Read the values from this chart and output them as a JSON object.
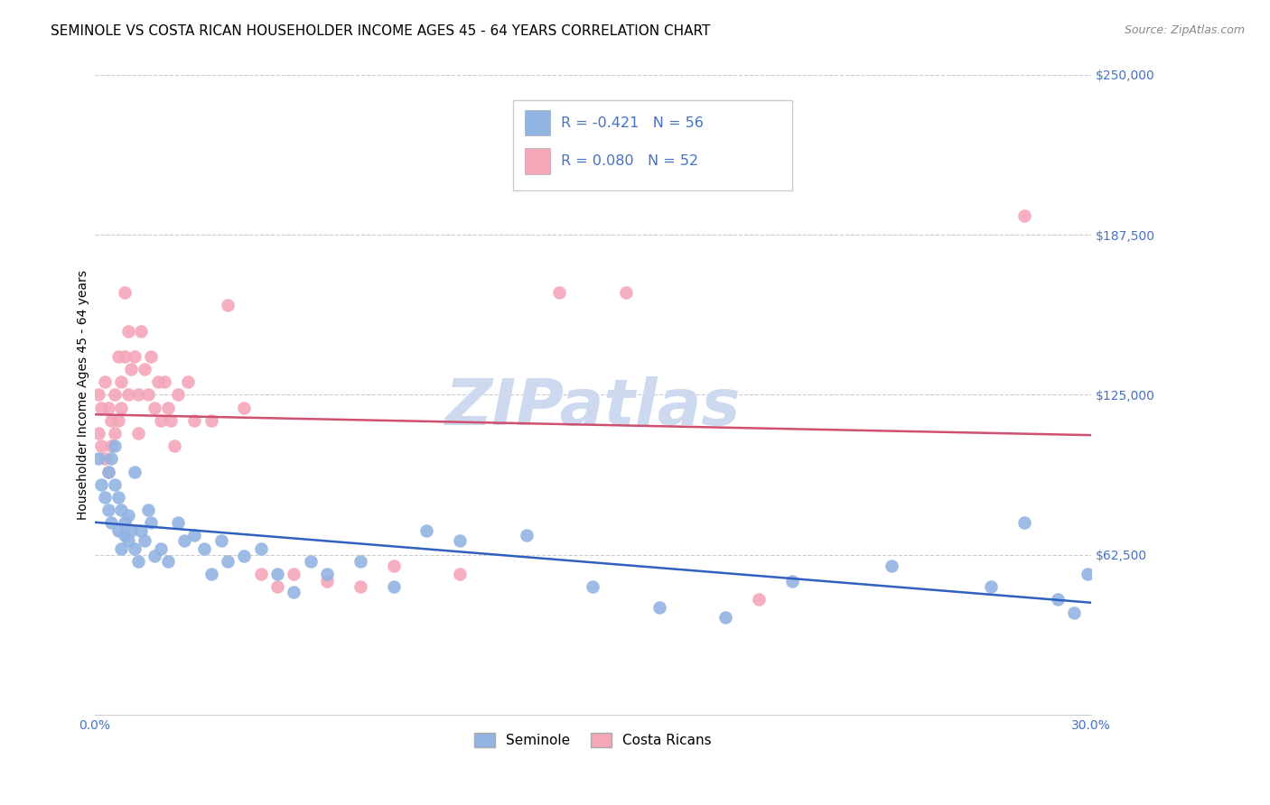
{
  "title": "SEMINOLE VS COSTA RICAN HOUSEHOLDER INCOME AGES 45 - 64 YEARS CORRELATION CHART",
  "source": "Source: ZipAtlas.com",
  "ylabel": "Householder Income Ages 45 - 64 years",
  "xlim": [
    0.0,
    0.3
  ],
  "ylim": [
    0,
    250000
  ],
  "yticks": [
    62500,
    125000,
    187500,
    250000
  ],
  "ytick_labels": [
    "$62,500",
    "$125,000",
    "$187,500",
    "$250,000"
  ],
  "xticks": [
    0.0,
    0.05,
    0.1,
    0.15,
    0.2,
    0.25,
    0.3
  ],
  "xtick_labels": [
    "0.0%",
    "",
    "",
    "",
    "",
    "",
    "30.0%"
  ],
  "seminole_color": "#92b4e3",
  "costa_rican_color": "#f4a7b9",
  "trend_seminole_color": "#3060c0",
  "trend_costa_rican_color": "#d05070",
  "legend_seminole_label": "R = -0.421   N = 56",
  "legend_costa_rican_label": "R = 0.080   N = 52",
  "legend_label_seminole": "Seminole",
  "legend_label_costa_rican": "Costa Ricans",
  "watermark": "ZIPatlas",
  "background_color": "#ffffff",
  "tick_color": "#4472c4",
  "grid_color": "#cccccc",
  "seminole_x": [
    0.001,
    0.002,
    0.003,
    0.004,
    0.004,
    0.005,
    0.005,
    0.006,
    0.006,
    0.007,
    0.007,
    0.008,
    0.008,
    0.009,
    0.009,
    0.01,
    0.01,
    0.011,
    0.012,
    0.012,
    0.013,
    0.014,
    0.015,
    0.016,
    0.017,
    0.018,
    0.02,
    0.022,
    0.025,
    0.027,
    0.03,
    0.033,
    0.035,
    0.038,
    0.04,
    0.045,
    0.05,
    0.055,
    0.06,
    0.065,
    0.07,
    0.08,
    0.09,
    0.1,
    0.11,
    0.13,
    0.15,
    0.17,
    0.19,
    0.21,
    0.24,
    0.27,
    0.28,
    0.29,
    0.295,
    0.299
  ],
  "seminole_y": [
    100000,
    90000,
    85000,
    80000,
    95000,
    100000,
    75000,
    105000,
    90000,
    85000,
    72000,
    80000,
    65000,
    75000,
    70000,
    78000,
    68000,
    72000,
    95000,
    65000,
    60000,
    72000,
    68000,
    80000,
    75000,
    62000,
    65000,
    60000,
    75000,
    68000,
    70000,
    65000,
    55000,
    68000,
    60000,
    62000,
    65000,
    55000,
    48000,
    60000,
    55000,
    60000,
    50000,
    72000,
    68000,
    70000,
    50000,
    42000,
    38000,
    52000,
    58000,
    50000,
    75000,
    45000,
    40000,
    55000
  ],
  "costa_rican_x": [
    0.001,
    0.001,
    0.002,
    0.002,
    0.003,
    0.003,
    0.004,
    0.004,
    0.005,
    0.005,
    0.006,
    0.006,
    0.007,
    0.007,
    0.008,
    0.008,
    0.009,
    0.009,
    0.01,
    0.01,
    0.011,
    0.012,
    0.013,
    0.013,
    0.014,
    0.015,
    0.016,
    0.017,
    0.018,
    0.019,
    0.02,
    0.021,
    0.022,
    0.023,
    0.024,
    0.025,
    0.028,
    0.03,
    0.035,
    0.04,
    0.045,
    0.05,
    0.055,
    0.06,
    0.07,
    0.08,
    0.09,
    0.11,
    0.14,
    0.16,
    0.2,
    0.28
  ],
  "costa_rican_y": [
    125000,
    110000,
    120000,
    105000,
    130000,
    100000,
    120000,
    95000,
    115000,
    105000,
    125000,
    110000,
    140000,
    115000,
    130000,
    120000,
    165000,
    140000,
    150000,
    125000,
    135000,
    140000,
    125000,
    110000,
    150000,
    135000,
    125000,
    140000,
    120000,
    130000,
    115000,
    130000,
    120000,
    115000,
    105000,
    125000,
    130000,
    115000,
    115000,
    160000,
    120000,
    55000,
    50000,
    55000,
    52000,
    50000,
    58000,
    55000,
    165000,
    165000,
    45000,
    195000
  ],
  "title_fontsize": 11,
  "axis_label_fontsize": 10,
  "tick_fontsize": 10,
  "legend_fontsize": 11.5,
  "watermark_fontsize": 52,
  "watermark_color": "#cdd9ee",
  "source_color": "#888888"
}
